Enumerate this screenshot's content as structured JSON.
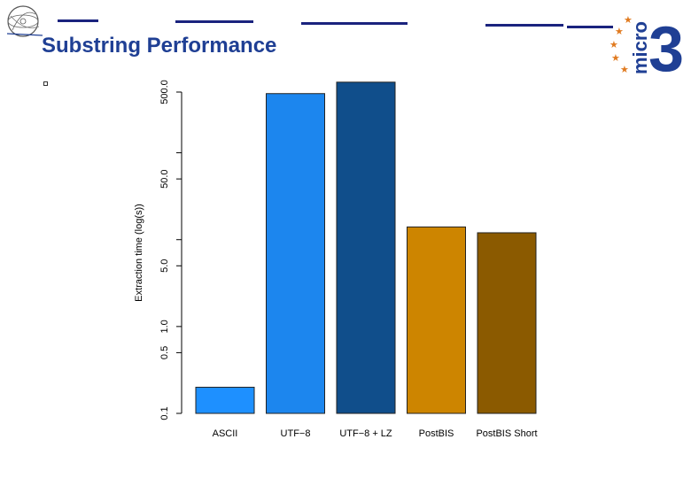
{
  "slide": {
    "title": "Substring Performance"
  },
  "logos": {
    "left": "university-seal",
    "right_text": "micro",
    "right_number": "3"
  },
  "colors": {
    "title": "#1f3f94",
    "header_lines": "#1a237e",
    "logo_blue": "#1f3f94",
    "logo_star": "#e07a1f"
  },
  "chart_data": {
    "type": "bar",
    "scale": "log",
    "categories": [
      "ASCII",
      "UTF−8",
      "UTF−8 + LZ",
      "PostBIS",
      "PostBIS Short"
    ],
    "values": [
      0.2,
      480,
      650,
      14,
      12
    ],
    "colors": [
      "#1e90ff",
      "#1c86ee",
      "#104e8b",
      "#cd8500",
      "#8b5a00"
    ],
    "ylabel": "Extraction time (log(s))",
    "xlabel": "",
    "yticks": [
      0.1,
      0.5,
      1.0,
      5.0,
      50.0,
      500.0
    ],
    "ytick_labels": [
      "0.1",
      "0.5",
      "1.0",
      "5.0",
      "50.0",
      "500.0"
    ],
    "ylim": [
      0.1,
      700
    ],
    "grid": false,
    "legend": "none"
  }
}
